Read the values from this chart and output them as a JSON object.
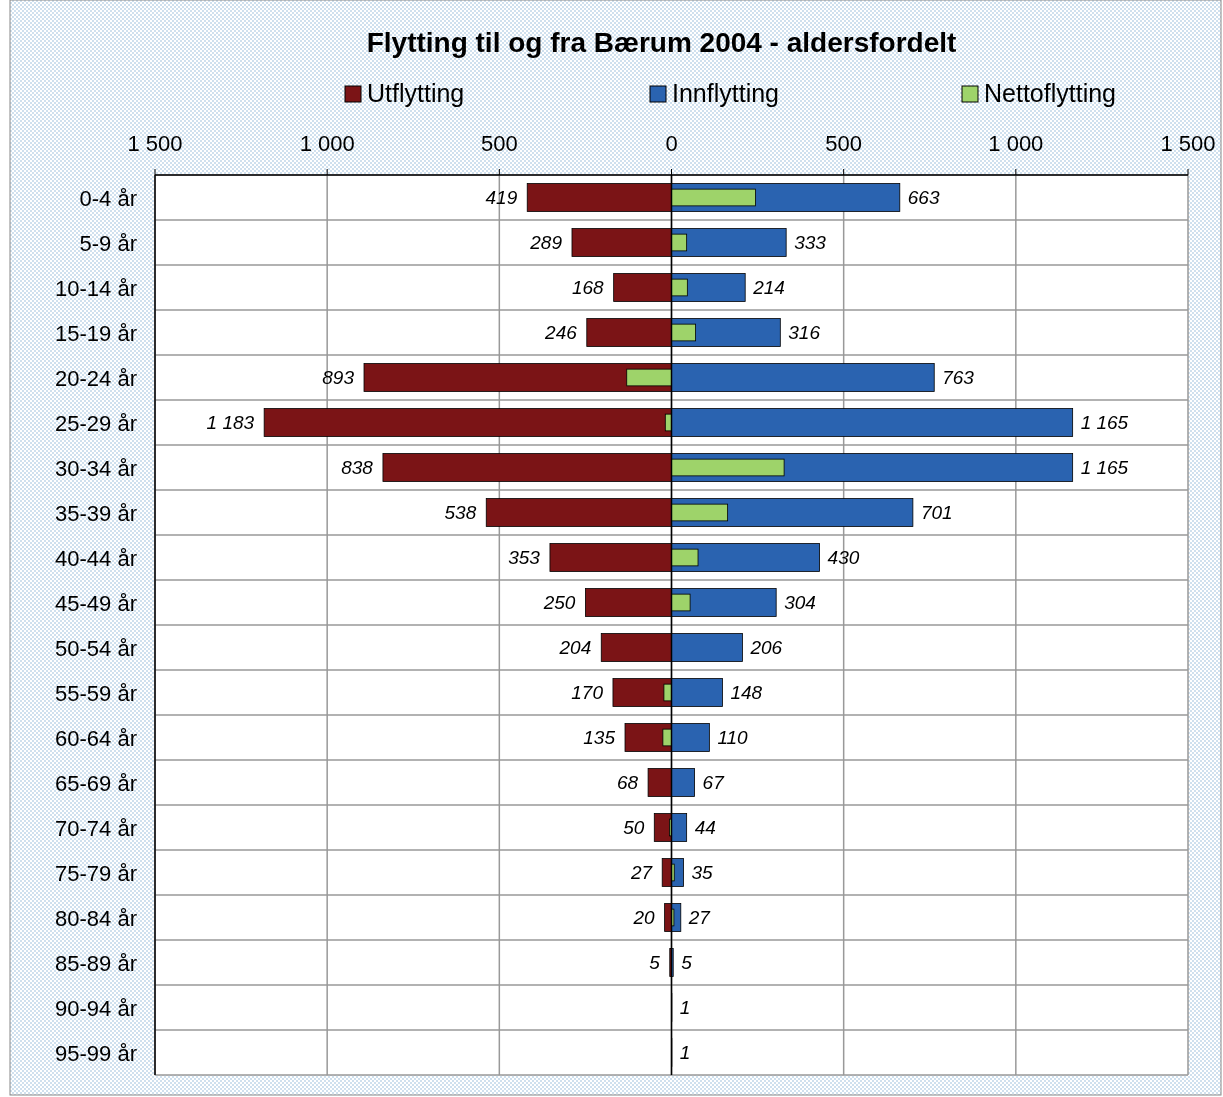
{
  "chart_data": {
    "type": "bar",
    "orientation": "horizontal",
    "title": "Flytting til og fra Bærum 2004 - aldersfordelt",
    "categories": [
      "0-4 år",
      "5-9 år",
      "10-14 år",
      "15-19 år",
      "20-24 år",
      "25-29 år",
      "30-34 år",
      "35-39 år",
      "40-44 år",
      "45-49 år",
      "50-54 år",
      "55-59 år",
      "60-64 år",
      "65-69 år",
      "70-74 år",
      "75-79 år",
      "80-84 år",
      "85-89 år",
      "90-94 år",
      "95-99 år"
    ],
    "series": [
      {
        "name": "Utflytting",
        "color": "#7b1416",
        "values": [
          419,
          289,
          168,
          246,
          893,
          1183,
          838,
          538,
          353,
          250,
          204,
          170,
          135,
          68,
          50,
          27,
          20,
          5,
          0,
          0
        ],
        "base": [
          -419,
          -289,
          -168,
          -246,
          -893,
          -1183,
          -838,
          -538,
          -353,
          -250,
          -204,
          -170,
          -135,
          -68,
          -50,
          -27,
          -20,
          -5,
          0,
          0
        ],
        "value_labels": [
          "419",
          "289",
          "168",
          "246",
          "893",
          "1 183",
          "838",
          "538",
          "353",
          "250",
          "204",
          "170",
          "135",
          "68",
          "50",
          "27",
          "20",
          "5",
          null,
          null
        ]
      },
      {
        "name": "Innflytting",
        "color": "#2a63b0",
        "values": [
          663,
          333,
          214,
          316,
          763,
          1165,
          1165,
          701,
          430,
          304,
          206,
          148,
          110,
          67,
          44,
          35,
          27,
          5,
          1,
          1
        ],
        "value_labels": [
          "663",
          "333",
          "214",
          "316",
          "763",
          "1 165",
          "1 165",
          "701",
          "430",
          "304",
          "206",
          "148",
          "110",
          "67",
          "44",
          "35",
          "27",
          "5",
          "1",
          "1"
        ]
      },
      {
        "name": "Nettoflytting",
        "color": "#9ed36a",
        "values": [
          244,
          44,
          46,
          70,
          -130,
          -18,
          327,
          163,
          77,
          54,
          null,
          -22,
          -25,
          null,
          -6,
          8,
          7,
          0,
          null,
          null
        ]
      }
    ],
    "xlim": [
      -1500,
      1500
    ],
    "xticks": [
      {
        "value": -1500,
        "label": "1 500"
      },
      {
        "value": -1000,
        "label": "1 000"
      },
      {
        "value": -500,
        "label": "500"
      },
      0,
      500,
      {
        "value": 1000,
        "label": "1 000"
      },
      {
        "value": 1500,
        "label": "1 500"
      }
    ],
    "grid": true,
    "legend": "top"
  }
}
